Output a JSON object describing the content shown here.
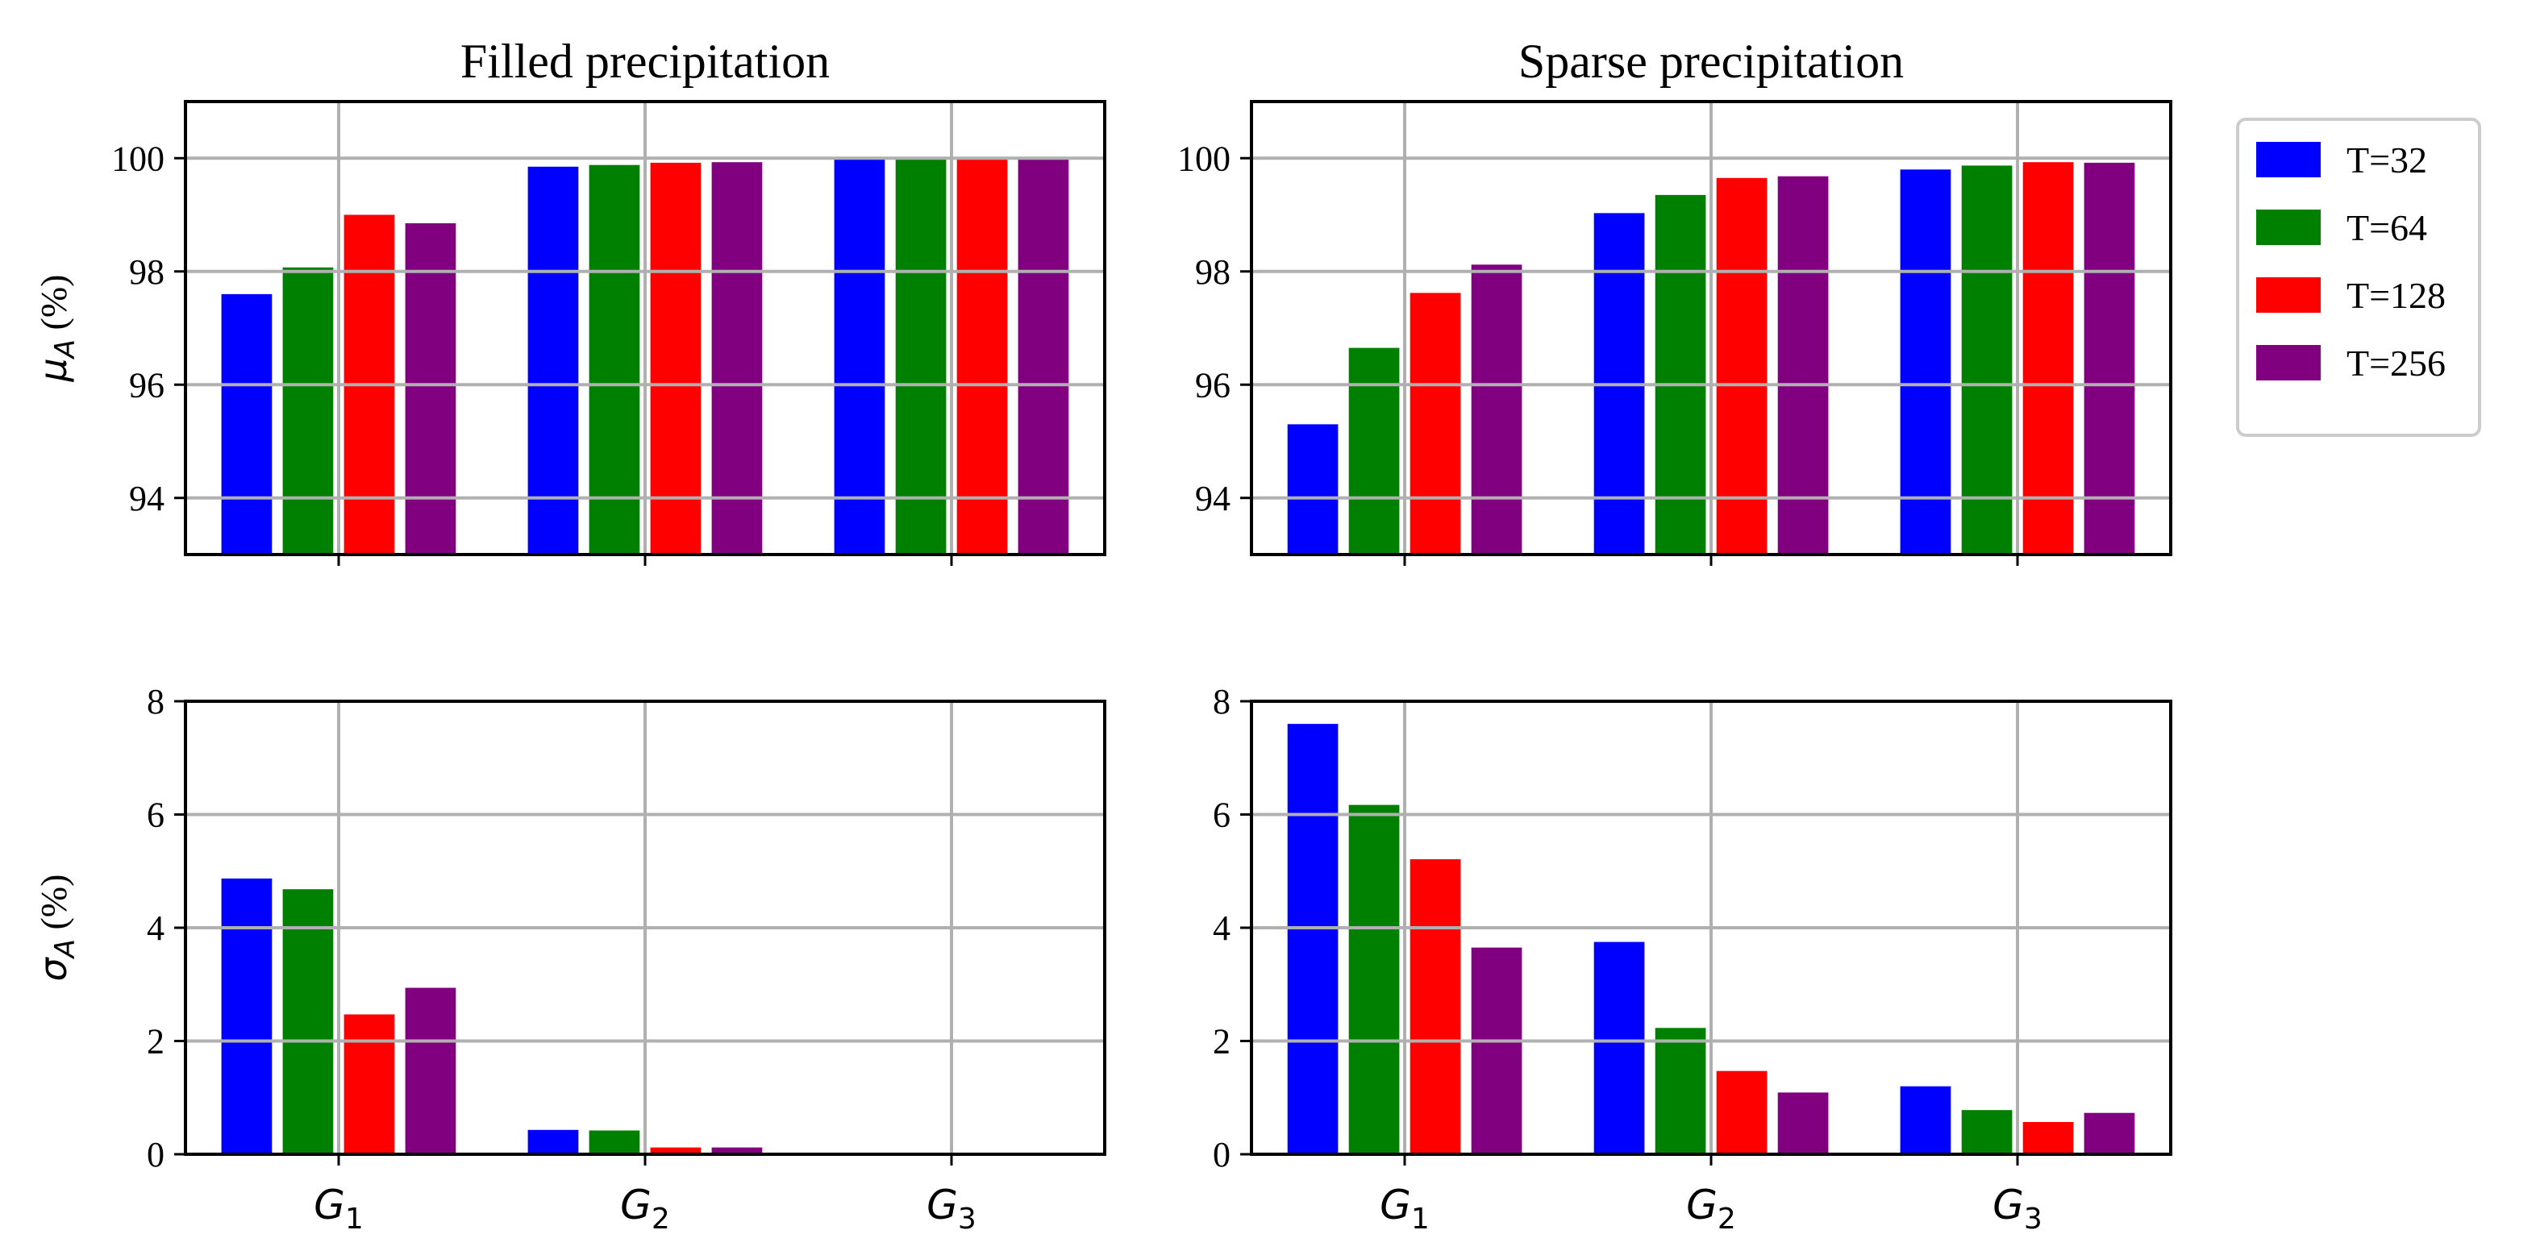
{
  "legend": {
    "entries": [
      "T=32",
      "T=64",
      "T=128",
      "T=256"
    ],
    "colors": [
      "#0000ff",
      "#008000",
      "#ff0000",
      "#800080"
    ]
  },
  "chart_data": [
    {
      "type": "bar",
      "title": "Filled precipitation",
      "ylabel": "μA (%)",
      "ylabel_main": "μ",
      "ylabel_sub": "A",
      "ylabel_rest": " (%)",
      "categories": [
        "G1",
        "G2",
        "G3"
      ],
      "ylim": [
        93,
        101
      ],
      "yticks": [
        "94",
        "96",
        "98",
        "100"
      ],
      "xticklabels_visible": false,
      "grid": true,
      "series": [
        {
          "name": "T=32",
          "values": [
            97.6,
            99.85,
            99.98
          ]
        },
        {
          "name": "T=64",
          "values": [
            98.07,
            99.88,
            99.98
          ]
        },
        {
          "name": "T=128",
          "values": [
            99.0,
            99.92,
            99.98
          ]
        },
        {
          "name": "T=256",
          "values": [
            98.85,
            99.93,
            99.98
          ]
        }
      ]
    },
    {
      "type": "bar",
      "title": "Sparse precipitation",
      "ylabel": "",
      "categories": [
        "G1",
        "G2",
        "G3"
      ],
      "ylim": [
        93,
        101
      ],
      "yticks": [
        "94",
        "96",
        "98",
        "100"
      ],
      "xticklabels_visible": false,
      "grid": true,
      "series": [
        {
          "name": "T=32",
          "values": [
            95.3,
            99.03,
            99.8
          ]
        },
        {
          "name": "T=64",
          "values": [
            96.65,
            99.35,
            99.87
          ]
        },
        {
          "name": "T=128",
          "values": [
            97.62,
            99.65,
            99.93
          ]
        },
        {
          "name": "T=256",
          "values": [
            98.12,
            99.68,
            99.92
          ]
        }
      ]
    },
    {
      "type": "bar",
      "title": "",
      "ylabel": "σA (%)",
      "ylabel_main": "σ",
      "ylabel_sub": "A",
      "ylabel_rest": " (%)",
      "categories": [
        "G1",
        "G2",
        "G3"
      ],
      "category_main": [
        "G",
        "G",
        "G"
      ],
      "category_sub": [
        "1",
        "2",
        "3"
      ],
      "ylim": [
        0,
        8
      ],
      "yticks": [
        "0",
        "2",
        "4",
        "6",
        "8"
      ],
      "xticklabels_visible": true,
      "grid": true,
      "series": [
        {
          "name": "T=32",
          "values": [
            4.87,
            0.43,
            0.0
          ]
        },
        {
          "name": "T=64",
          "values": [
            4.68,
            0.42,
            0.0
          ]
        },
        {
          "name": "T=128",
          "values": [
            2.47,
            0.12,
            0.0
          ]
        },
        {
          "name": "T=256",
          "values": [
            2.94,
            0.12,
            0.0
          ]
        }
      ]
    },
    {
      "type": "bar",
      "title": "",
      "ylabel": "",
      "categories": [
        "G1",
        "G2",
        "G3"
      ],
      "category_main": [
        "G",
        "G",
        "G"
      ],
      "category_sub": [
        "1",
        "2",
        "3"
      ],
      "ylim": [
        0,
        8
      ],
      "yticks": [
        "0",
        "2",
        "4",
        "6",
        "8"
      ],
      "xticklabels_visible": true,
      "grid": true,
      "series": [
        {
          "name": "T=32",
          "values": [
            7.6,
            3.75,
            1.2
          ]
        },
        {
          "name": "T=64",
          "values": [
            6.17,
            2.23,
            0.78
          ]
        },
        {
          "name": "T=128",
          "values": [
            5.21,
            1.47,
            0.57
          ]
        },
        {
          "name": "T=256",
          "values": [
            3.65,
            1.09,
            0.73
          ]
        }
      ]
    }
  ]
}
